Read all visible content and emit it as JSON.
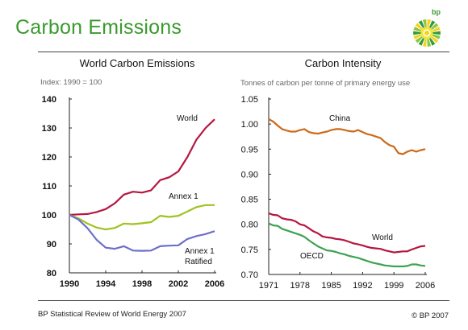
{
  "page": {
    "title": "Carbon Emissions",
    "source": "BP Statistical Review of World Energy 2007",
    "copyright": "© BP 2007",
    "logo_text": "bp"
  },
  "colors": {
    "title_green": "#3a9a2e",
    "world": "#b5173f",
    "annex1": "#9fc320",
    "annex1_ratified": "#6d70c8",
    "china": "#cc6a1a",
    "oecd": "#3da251"
  },
  "chart_data": [
    {
      "type": "line",
      "title": "World Carbon Emissions",
      "subtitle": "Index: 1990 = 100",
      "xlabel": "",
      "ylabel": "",
      "xlim": [
        1990,
        2006
      ],
      "ylim": [
        80,
        140
      ],
      "xticks": [
        "1990",
        "1994",
        "1998",
        "2002",
        "2006"
      ],
      "yticks": [
        "80",
        "90",
        "100",
        "110",
        "120",
        "130",
        "140"
      ],
      "grid": false,
      "x": [
        1990,
        1991,
        1992,
        1993,
        1994,
        1995,
        1996,
        1997,
        1998,
        1999,
        2000,
        2001,
        2002,
        2003,
        2004,
        2005,
        2006
      ],
      "series": [
        {
          "name": "World",
          "label_lines": [
            "World"
          ],
          "color": "#b5173f",
          "values": [
            100,
            100.2,
            100.3,
            101,
            102,
            104,
            107,
            108,
            107.7,
            108.5,
            112,
            113,
            115,
            120,
            126,
            130,
            133
          ]
        },
        {
          "name": "Annex 1",
          "label_lines": [
            "Annex 1"
          ],
          "color": "#9fc320",
          "values": [
            100,
            98.8,
            97,
            95.6,
            95,
            95.5,
            97,
            96.8,
            97.1,
            97.5,
            99.7,
            99.3,
            99.7,
            101.2,
            102.7,
            103.4,
            103.4
          ]
        },
        {
          "name": "Annex 1 Ratified",
          "label_lines": [
            "Annex 1",
            "Ratified"
          ],
          "color": "#6d70c8",
          "values": [
            100,
            98.4,
            95.4,
            91.4,
            88.7,
            88.3,
            89.2,
            87.7,
            87.6,
            87.7,
            89.2,
            89.4,
            89.5,
            91.7,
            92.7,
            93.4,
            94.4
          ]
        }
      ]
    },
    {
      "type": "line",
      "title": "Carbon Intensity",
      "subtitle": "Tonnes of carbon per tonne of primary energy use",
      "xlabel": "",
      "ylabel": "",
      "xlim": [
        1971,
        2006
      ],
      "ylim": [
        0.7,
        1.05
      ],
      "xticks": [
        "1971",
        "1978",
        "1985",
        "1992",
        "1999",
        "2006"
      ],
      "yticks": [
        "0.70",
        "0.75",
        "0.80",
        "0.85",
        "0.90",
        "0.95",
        "1.00",
        "1.05"
      ],
      "grid": false,
      "x": [
        1971,
        1972,
        1973,
        1974,
        1975,
        1976,
        1977,
        1978,
        1979,
        1980,
        1981,
        1982,
        1983,
        1984,
        1985,
        1986,
        1987,
        1988,
        1989,
        1990,
        1991,
        1992,
        1993,
        1994,
        1995,
        1996,
        1997,
        1998,
        1999,
        2000,
        2001,
        2002,
        2003,
        2004,
        2005,
        2006
      ],
      "series": [
        {
          "name": "China",
          "label_lines": [
            "China"
          ],
          "color": "#cc6a1a",
          "values": [
            1.01,
            1.005,
            0.997,
            0.99,
            0.987,
            0.985,
            0.985,
            0.988,
            0.99,
            0.984,
            0.982,
            0.981,
            0.983,
            0.985,
            0.988,
            0.99,
            0.99,
            0.988,
            0.986,
            0.985,
            0.988,
            0.984,
            0.98,
            0.978,
            0.975,
            0.972,
            0.964,
            0.958,
            0.955,
            0.942,
            0.94,
            0.945,
            0.948,
            0.945,
            0.948,
            0.95
          ]
        },
        {
          "name": "World",
          "label_lines": [
            "World"
          ],
          "color": "#b5173f",
          "values": [
            0.822,
            0.819,
            0.818,
            0.812,
            0.81,
            0.809,
            0.806,
            0.8,
            0.798,
            0.792,
            0.786,
            0.782,
            0.776,
            0.774,
            0.773,
            0.771,
            0.77,
            0.768,
            0.765,
            0.762,
            0.76,
            0.758,
            0.755,
            0.753,
            0.752,
            0.751,
            0.748,
            0.746,
            0.744,
            0.745,
            0.746,
            0.746,
            0.75,
            0.753,
            0.756,
            0.757
          ]
        },
        {
          "name": "OECD",
          "label_lines": [
            "OECD"
          ],
          "color": "#3da251",
          "values": [
            0.802,
            0.798,
            0.797,
            0.791,
            0.788,
            0.785,
            0.782,
            0.779,
            0.775,
            0.768,
            0.762,
            0.756,
            0.752,
            0.748,
            0.747,
            0.745,
            0.742,
            0.74,
            0.737,
            0.735,
            0.733,
            0.73,
            0.727,
            0.724,
            0.722,
            0.72,
            0.718,
            0.717,
            0.716,
            0.716,
            0.716,
            0.717,
            0.72,
            0.72,
            0.718,
            0.717
          ]
        }
      ]
    }
  ]
}
